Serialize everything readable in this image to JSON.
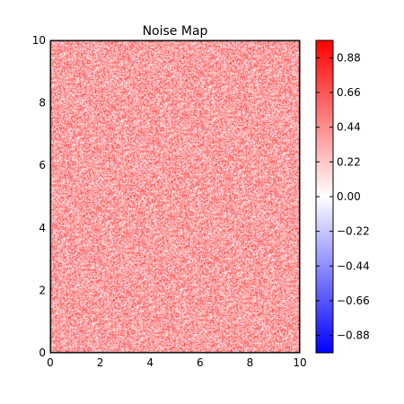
{
  "chart_data": {
    "type": "heatmap",
    "title": "Noise Map",
    "xlabel": "",
    "ylabel": "",
    "xlim": [
      0,
      10
    ],
    "ylim": [
      0,
      10
    ],
    "x_ticks": [
      "0",
      "2",
      "4",
      "6",
      "8",
      "10"
    ],
    "y_ticks": [
      "0",
      "2",
      "4",
      "6",
      "8",
      "10"
    ],
    "colormap": "bwr",
    "colorbar": {
      "vmin": -0.99,
      "vmax": 0.99,
      "ticks": [
        0.88,
        0.66,
        0.44,
        0.22,
        0.0,
        -0.22,
        -0.44,
        -0.66,
        -0.88
      ],
      "tick_labels": [
        "0.88",
        "0.66",
        "0.44",
        "0.22",
        "0.00",
        "−0.22",
        "−0.44",
        "−0.66",
        "−0.88"
      ]
    },
    "value_distribution": {
      "description": "dense fine-grained random noise, predominantly positive (light red to red), with scattered white and pale-blue cells",
      "mean": 0.35,
      "std": 0.22
    },
    "colors": {
      "low": "#0000ff",
      "mid": "#ffffff",
      "high": "#ff0000",
      "frame": "#000000"
    },
    "grid": false
  }
}
